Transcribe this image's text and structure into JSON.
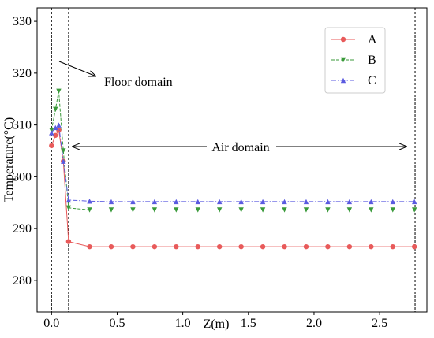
{
  "chart_data": {
    "type": "line",
    "x_label": "Z(m)",
    "y_label": "Temperature(°C)",
    "xlim": [
      -0.11,
      2.86
    ],
    "ylim": [
      273.9,
      332.6
    ],
    "xticks": [
      {
        "value": 0,
        "label": "0.0"
      },
      0.5,
      {
        "value": 1,
        "label": "1.0"
      },
      1.5,
      {
        "value": 2,
        "label": "2.0"
      },
      2.5
    ],
    "yticks": [
      280,
      290,
      300,
      310,
      320,
      330
    ],
    "vlines": [
      0,
      0.13,
      2.77
    ],
    "legend": "upper right",
    "annotations": [
      "Floor domain",
      "Air domain"
    ],
    "x": [
      0,
      0.03,
      0.055,
      0.09,
      0.13,
      0.29,
      0.455,
      0.62,
      0.785,
      0.95,
      1.115,
      1.28,
      1.445,
      1.61,
      1.775,
      1.94,
      2.105,
      2.27,
      2.435,
      2.6,
      2.765
    ],
    "series": [
      {
        "name": "A",
        "color": "#e85a5a",
        "marker": "o",
        "linestyle": "solid",
        "values": [
          306,
          308,
          309,
          303,
          287.5,
          286.5,
          286.5,
          286.5,
          286.5,
          286.5,
          286.5,
          286.5,
          286.5,
          286.5,
          286.5,
          286.5,
          286.5,
          286.5,
          286.5,
          286.5,
          286.5
        ]
      },
      {
        "name": "B",
        "color": "#3a9a3a",
        "marker": "v",
        "linestyle": "dashed",
        "values": [
          309,
          313,
          316.5,
          305,
          294,
          293.6,
          293.6,
          293.6,
          293.6,
          293.6,
          293.6,
          293.6,
          293.6,
          293.6,
          293.6,
          293.6,
          293.6,
          293.6,
          293.6,
          293.6,
          293.6
        ]
      },
      {
        "name": "C",
        "color": "#5a5ae0",
        "marker": "^",
        "linestyle": "dashdot",
        "values": [
          308.5,
          309.5,
          310,
          303,
          295.5,
          295.3,
          295.2,
          295.2,
          295.2,
          295.2,
          295.2,
          295.2,
          295.2,
          295.2,
          295.2,
          295.2,
          295.2,
          295.2,
          295.2,
          295.2,
          295.2
        ]
      }
    ]
  }
}
